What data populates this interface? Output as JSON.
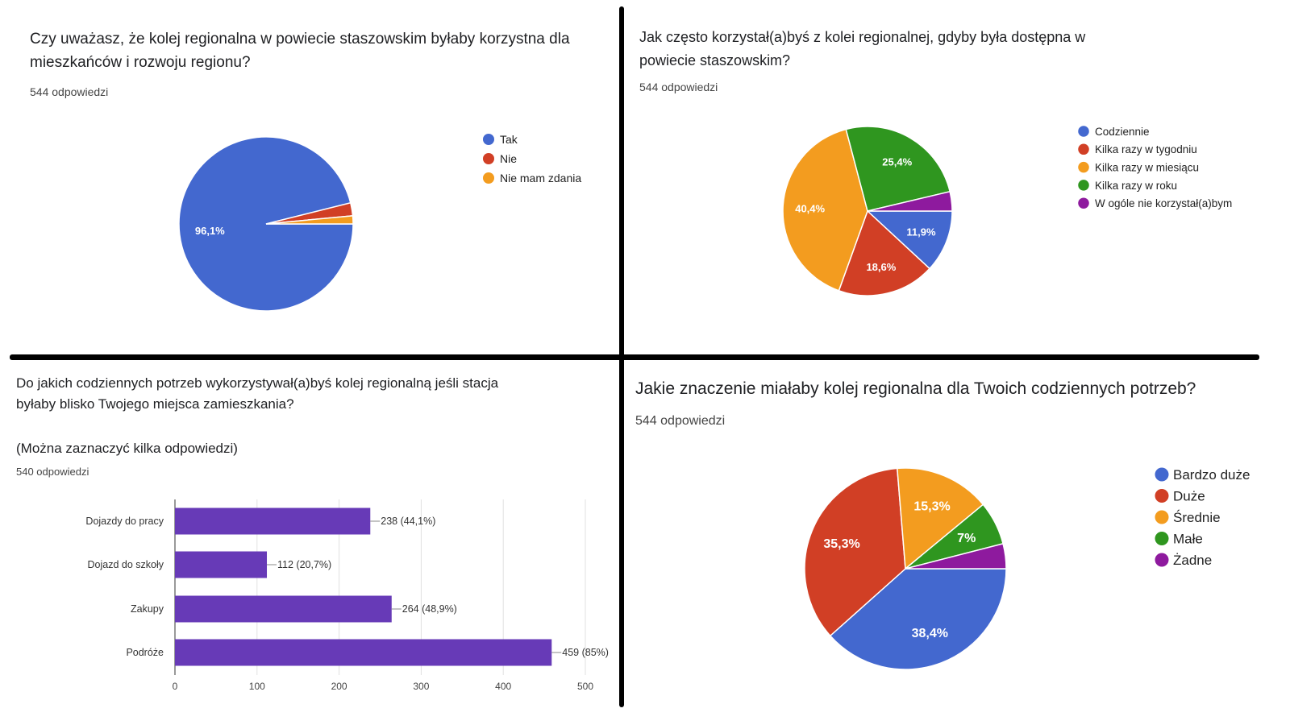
{
  "chart_data": [
    {
      "type": "pie",
      "title": "Czy uważasz, że kolej regionalna w powiecie staszowskim byłaby korzystna dla mieszkańców i rozwoju regionu?",
      "subtitle": "544 odpowiedzi",
      "legend_position": "right",
      "categories": [
        "Tak",
        "Nie",
        "Nie mam zdania"
      ],
      "values": [
        96.1,
        2.4,
        1.5
      ],
      "labels": [
        "96,1%",
        "",
        ""
      ],
      "colors": [
        "#4368cf",
        "#d13f25",
        "#f39c1f"
      ]
    },
    {
      "type": "pie",
      "title": "Jak często korzystał(a)byś z kolei regionalnej, gdyby była dostępna w powiecie staszowskim?",
      "subtitle": "544 odpowiedzi",
      "legend_position": "right",
      "categories": [
        "Codziennie",
        "Kilka razy w tygodniu",
        "Kilka razy w miesiącu",
        "Kilka razy w roku",
        "W ogóle nie korzystał(a)bym"
      ],
      "values": [
        11.9,
        18.6,
        40.4,
        25.4,
        3.7
      ],
      "labels": [
        "11,9%",
        "18,6%",
        "40,4%",
        "25,4%",
        ""
      ],
      "colors": [
        "#4368cf",
        "#d13f25",
        "#f39c1f",
        "#2f961f",
        "#8e1a9e"
      ]
    },
    {
      "type": "bar",
      "orientation": "horizontal",
      "title": "Do jakich codziennych potrzeb wykorzystywał(a)byś kolej regionalną jeśli stacja byłaby blisko Twojego miejsca zamieszkania?",
      "note": "(Można zaznaczyć kilka odpowiedzi)",
      "subtitle": "540 odpowiedzi",
      "categories": [
        "Dojazdy do pracy",
        "Dojazd do szkoły",
        "Zakupy",
        "Podróże"
      ],
      "values": [
        238,
        112,
        264,
        459
      ],
      "labels": [
        "238 (44,1%)",
        "112 (20,7%)",
        "264 (48,9%)",
        "459 (85%)"
      ],
      "xlim": [
        0,
        500
      ],
      "xticks": [
        "0",
        "100",
        "200",
        "300",
        "400",
        "500"
      ],
      "grid": true,
      "color": "#673ab7"
    },
    {
      "type": "pie",
      "title": "Jakie znaczenie miałaby kolej regionalna dla Twoich codziennych potrzeb?",
      "subtitle": "544 odpowiedzi",
      "legend_position": "right",
      "categories": [
        "Bardzo duże",
        "Duże",
        "Średnie",
        "Małe",
        "Żadne"
      ],
      "values": [
        38.4,
        35.3,
        15.3,
        7.0,
        4.0
      ],
      "labels": [
        "38,4%",
        "35,3%",
        "15,3%",
        "7%",
        ""
      ],
      "colors": [
        "#4368cf",
        "#d13f25",
        "#f39c1f",
        "#2f961f",
        "#8e1a9e"
      ]
    }
  ]
}
